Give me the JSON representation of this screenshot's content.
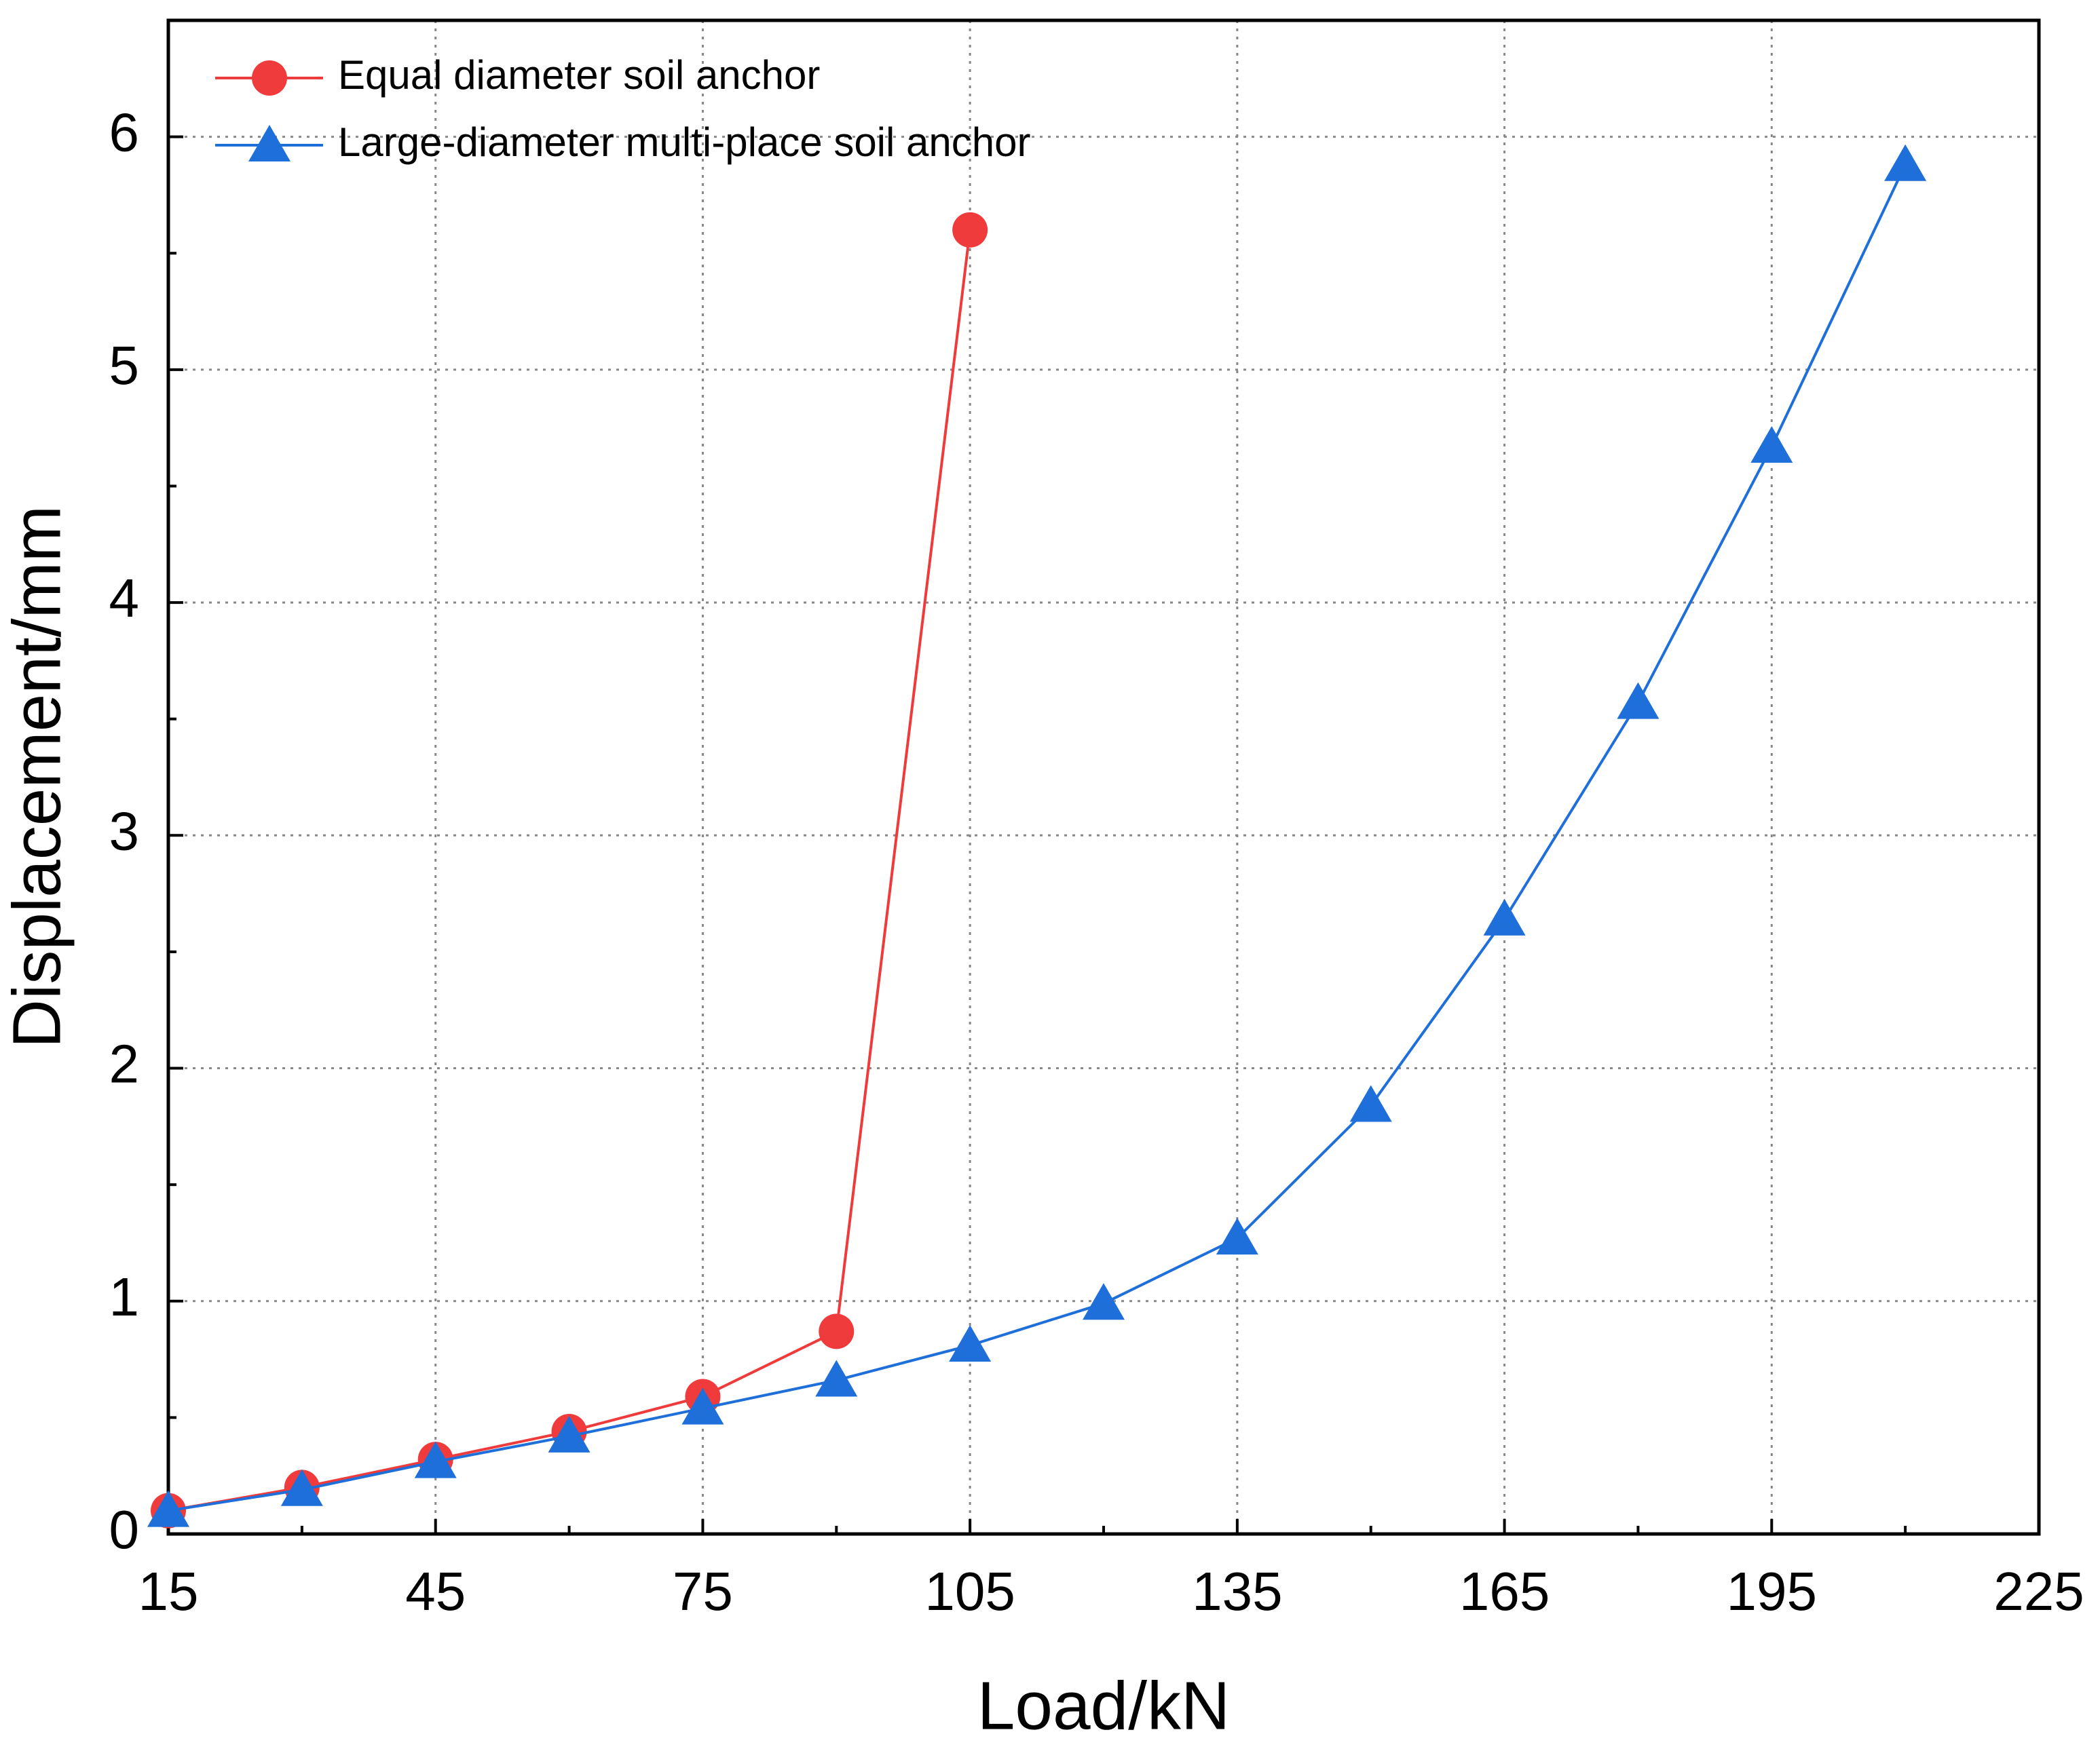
{
  "chart_data": {
    "type": "line",
    "xlabel": "Load/kN",
    "ylabel": "Displacement/mm",
    "xlim": [
      15,
      225
    ],
    "xticks": [
      15,
      45,
      75,
      105,
      135,
      165,
      195,
      225
    ],
    "ylim": [
      0,
      6.5
    ],
    "yticks": [
      0,
      1,
      2,
      3,
      4,
      5,
      6
    ],
    "grid": true,
    "legend": "upper left",
    "series": [
      {
        "name": "Equal diameter soil anchor",
        "color": "#ef3b3b",
        "marker": "circle",
        "x": [
          15,
          30,
          45,
          60,
          75,
          90,
          105
        ],
        "values": [
          0.1,
          0.2,
          0.32,
          0.44,
          0.59,
          0.87,
          5.6
        ]
      },
      {
        "name": "Large-diameter multi-place soil anchor",
        "color": "#1f6fdb",
        "marker": "triangle",
        "x": [
          15,
          30,
          45,
          60,
          75,
          90,
          105,
          120,
          135,
          150,
          165,
          180,
          195,
          210
        ],
        "values": [
          0.1,
          0.19,
          0.31,
          0.42,
          0.54,
          0.66,
          0.81,
          0.99,
          1.27,
          1.84,
          2.64,
          3.57,
          4.67,
          5.88
        ]
      }
    ]
  }
}
